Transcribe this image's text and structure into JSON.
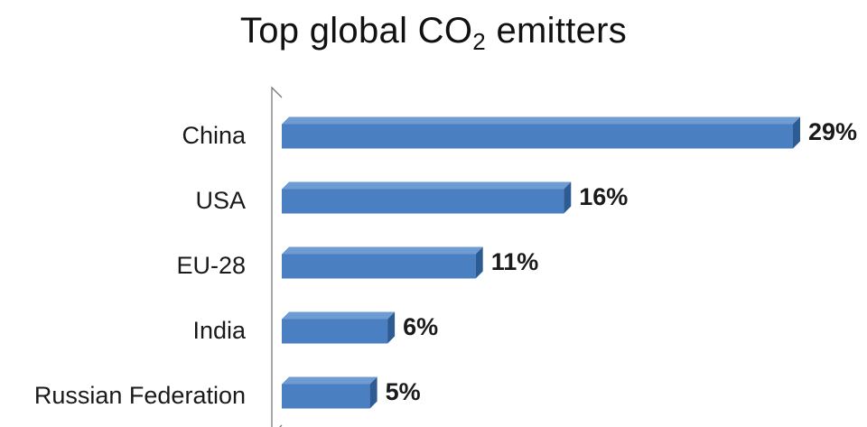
{
  "chart_data": {
    "type": "bar",
    "orientation": "horizontal",
    "title": {
      "prefix": "Top global CO",
      "subscript": "2",
      "suffix": " emitters"
    },
    "categories": [
      "China",
      "USA",
      "EU-28",
      "India",
      "Russian Federation"
    ],
    "values": [
      29,
      16,
      11,
      6,
      5
    ],
    "value_labels": [
      "29%",
      "16%",
      "11%",
      "6%",
      "5%"
    ],
    "xlim": [
      0,
      29
    ],
    "grid": false,
    "legend": "none",
    "style": "3d",
    "colors": {
      "bar_front": "#4a7fc1",
      "bar_top": "#6f9bd3",
      "bar_side": "#2d5b93",
      "axis_wall": "#7a7a7a"
    }
  }
}
